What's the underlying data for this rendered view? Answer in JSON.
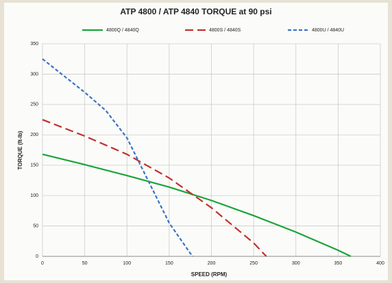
{
  "chart_data": {
    "type": "line",
    "title": "ATP 4800 / ATP 4840 TORQUE at 90 psi",
    "x_label": "SPEED (RPM)",
    "y_label": "TORQUE (ft-lb)",
    "xlim": [
      0,
      400
    ],
    "xticks": [
      0,
      50,
      100,
      150,
      200,
      250,
      300,
      350,
      400
    ],
    "ylim": [
      0,
      350
    ],
    "yticks": [
      0,
      50,
      100,
      150,
      200,
      250,
      300,
      350
    ],
    "grid": true,
    "series": [
      {
        "name": "4800Q / 4840Q",
        "color": "#1aa33a",
        "dash": "solid",
        "x": [
          0,
          50,
          100,
          150,
          200,
          250,
          300,
          350,
          365
        ],
        "values": [
          168,
          151,
          133,
          114,
          92,
          67,
          40,
          10,
          0
        ]
      },
      {
        "name": "4800S / 4840S",
        "color": "#c0302c",
        "dash": "dashed",
        "x": [
          0,
          50,
          100,
          150,
          200,
          250,
          265
        ],
        "values": [
          225,
          198,
          168,
          129,
          80,
          22,
          0
        ]
      },
      {
        "name": "4800U / 4840U",
        "color": "#3a72c4",
        "dash": "dotted",
        "x": [
          0,
          50,
          75,
          100,
          125,
          150,
          175,
          178
        ],
        "values": [
          325,
          270,
          240,
          195,
          125,
          55,
          5,
          0
        ]
      }
    ]
  }
}
